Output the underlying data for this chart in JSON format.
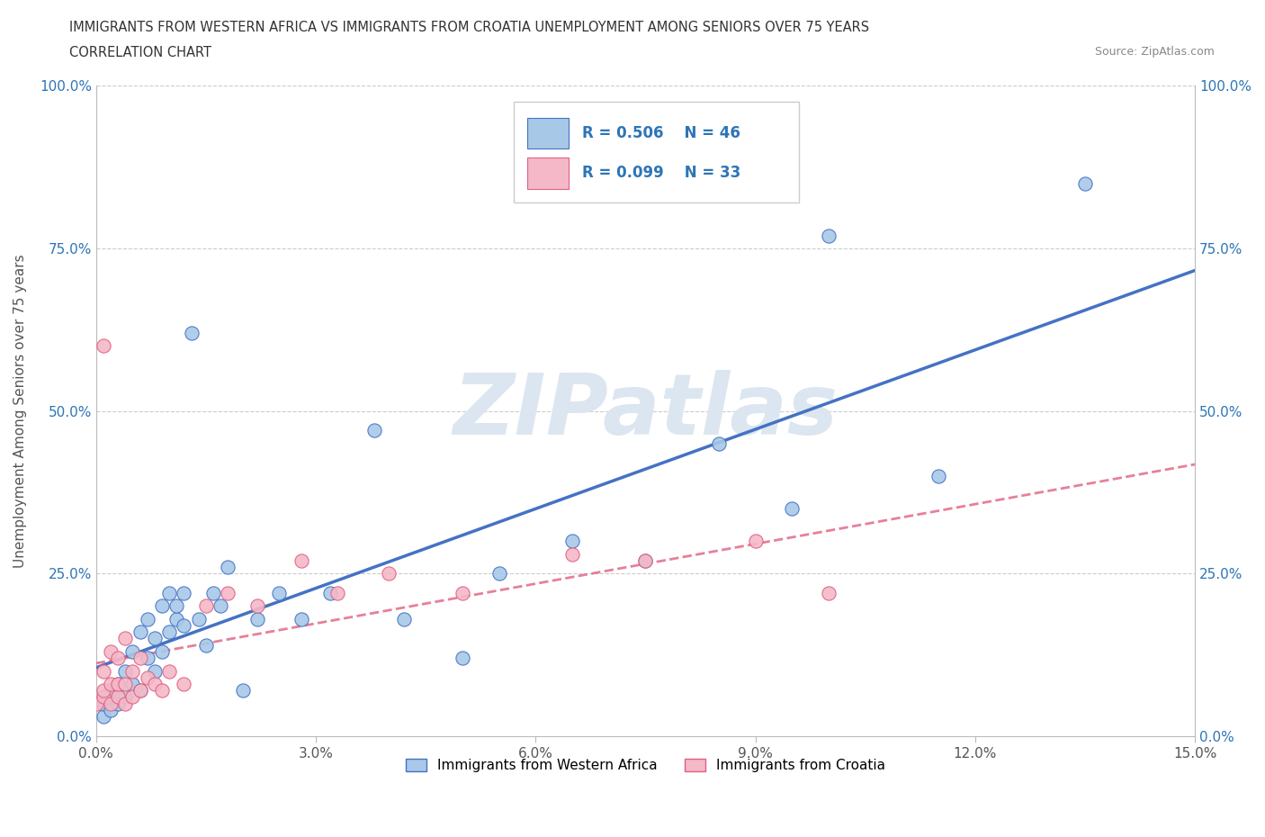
{
  "title_line1": "IMMIGRANTS FROM WESTERN AFRICA VS IMMIGRANTS FROM CROATIA UNEMPLOYMENT AMONG SENIORS OVER 75 YEARS",
  "title_line2": "CORRELATION CHART",
  "source_text": "Source: ZipAtlas.com",
  "ylabel": "Unemployment Among Seniors over 75 years",
  "xlim": [
    0.0,
    0.15
  ],
  "ylim": [
    0.0,
    1.0
  ],
  "xticks": [
    0.0,
    0.03,
    0.06,
    0.09,
    0.12,
    0.15
  ],
  "xticklabels": [
    "0.0%",
    "3.0%",
    "6.0%",
    "9.0%",
    "12.0%",
    "15.0%"
  ],
  "yticks": [
    0.0,
    0.25,
    0.5,
    0.75,
    1.0
  ],
  "yticklabels": [
    "0.0%",
    "25.0%",
    "50.0%",
    "75.0%",
    "100.0%"
  ],
  "R_blue": 0.506,
  "N_blue": 46,
  "R_pink": 0.099,
  "N_pink": 33,
  "color_blue": "#a8c8e8",
  "color_blue_edge": "#4472c4",
  "color_pink": "#f4b8c8",
  "color_pink_edge": "#e06080",
  "color_blue_text": "#2e75b6",
  "watermark_text": "ZIPatlas",
  "watermark_color": "#dce6f0",
  "legend_label_blue": "Immigrants from Western Africa",
  "legend_label_pink": "Immigrants from Croatia",
  "blue_x": [
    0.001,
    0.001,
    0.002,
    0.002,
    0.003,
    0.003,
    0.004,
    0.004,
    0.005,
    0.005,
    0.006,
    0.006,
    0.007,
    0.007,
    0.008,
    0.008,
    0.009,
    0.009,
    0.01,
    0.01,
    0.011,
    0.011,
    0.012,
    0.012,
    0.013,
    0.014,
    0.015,
    0.016,
    0.017,
    0.018,
    0.02,
    0.022,
    0.025,
    0.028,
    0.032,
    0.038,
    0.042,
    0.05,
    0.055,
    0.065,
    0.075,
    0.085,
    0.095,
    0.1,
    0.115,
    0.135
  ],
  "blue_y": [
    0.03,
    0.05,
    0.04,
    0.07,
    0.05,
    0.08,
    0.06,
    0.1,
    0.08,
    0.13,
    0.07,
    0.16,
    0.12,
    0.18,
    0.1,
    0.15,
    0.13,
    0.2,
    0.16,
    0.22,
    0.18,
    0.2,
    0.17,
    0.22,
    0.62,
    0.18,
    0.14,
    0.22,
    0.2,
    0.26,
    0.07,
    0.18,
    0.22,
    0.18,
    0.22,
    0.47,
    0.18,
    0.12,
    0.25,
    0.3,
    0.27,
    0.45,
    0.35,
    0.77,
    0.4,
    0.85
  ],
  "pink_x": [
    0.0,
    0.001,
    0.001,
    0.001,
    0.002,
    0.002,
    0.002,
    0.003,
    0.003,
    0.003,
    0.004,
    0.004,
    0.004,
    0.005,
    0.005,
    0.006,
    0.006,
    0.007,
    0.008,
    0.009,
    0.01,
    0.012,
    0.015,
    0.018,
    0.022,
    0.028,
    0.033,
    0.04,
    0.05,
    0.065,
    0.075,
    0.09,
    0.1
  ],
  "pink_y": [
    0.05,
    0.06,
    0.07,
    0.1,
    0.05,
    0.08,
    0.13,
    0.06,
    0.08,
    0.12,
    0.05,
    0.08,
    0.15,
    0.06,
    0.1,
    0.07,
    0.12,
    0.09,
    0.08,
    0.07,
    0.1,
    0.08,
    0.2,
    0.22,
    0.2,
    0.27,
    0.22,
    0.25,
    0.22,
    0.28,
    0.27,
    0.3,
    0.22
  ],
  "pink_outlier_x": [
    0.001
  ],
  "pink_outlier_y": [
    0.6
  ],
  "background_color": "#ffffff",
  "grid_color": "#cccccc"
}
